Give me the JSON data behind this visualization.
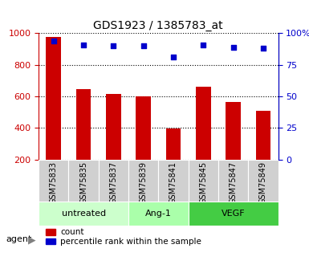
{
  "title": "GDS1923 / 1385783_at",
  "categories": [
    "GSM75833",
    "GSM75835",
    "GSM75837",
    "GSM75839",
    "GSM75841",
    "GSM75845",
    "GSM75847",
    "GSM75849"
  ],
  "counts": [
    975,
    645,
    615,
    600,
    395,
    660,
    565,
    510
  ],
  "percentile_ranks": [
    94,
    91,
    90,
    90,
    81,
    91,
    89,
    88
  ],
  "groups": [
    {
      "label": "untreated",
      "indices": [
        0,
        1,
        2
      ],
      "color": "#ccffcc"
    },
    {
      "label": "Ang-1",
      "indices": [
        3,
        4
      ],
      "color": "#aaffaa"
    },
    {
      "label": "VEGF",
      "indices": [
        5,
        6,
        7
      ],
      "color": "#44cc44"
    }
  ],
  "group_colors": [
    "#ccffcc",
    "#aaffaa",
    "#44cc44"
  ],
  "bar_color": "#cc0000",
  "dot_color": "#0000cc",
  "left_axis_color": "#cc0000",
  "right_axis_color": "#0000cc",
  "ylim_left": [
    200,
    1000
  ],
  "ylim_right": [
    0,
    100
  ],
  "yticks_left": [
    200,
    400,
    600,
    800,
    1000
  ],
  "yticks_right": [
    0,
    25,
    50,
    75,
    100
  ],
  "right_tick_labels": [
    "0",
    "25",
    "50",
    "75",
    "100%"
  ],
  "grid_color": "black",
  "agent_label": "agent",
  "legend_count": "count",
  "legend_percentile": "percentile rank within the sample"
}
